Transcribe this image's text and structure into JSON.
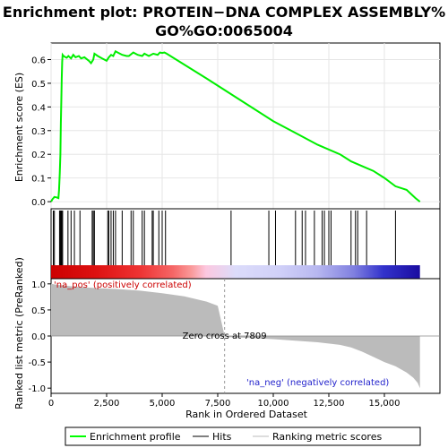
{
  "chart_data": {
    "type": "line",
    "title": "Enrichment plot: PROTEIN-DNA COMPLEX ASSEMBLY%GO%GO:0065004",
    "title_lines": [
      "Enrichment plot: PROTEIN−DNA COMPLEX ASSEMBLY%",
      "GO%GO:0065004"
    ],
    "xlabel": "Rank in Ordered Dataset",
    "xlim": [
      0,
      17500
    ],
    "xticks": [
      0,
      2500,
      5000,
      7500,
      10000,
      12500,
      15000
    ],
    "xtick_labels": [
      "0",
      "2,500",
      "5,000",
      "7,500",
      "10,000",
      "12,500",
      "15,000"
    ],
    "es_panel": {
      "ylabel": "Enrichment score (ES)",
      "ylim": [
        -0.03,
        0.67
      ],
      "yticks": [
        0.0,
        0.1,
        0.2,
        0.3,
        0.4,
        0.5,
        0.6
      ],
      "ytick_labels": [
        "0.0",
        "0.1",
        "0.2",
        "0.3",
        "0.4",
        "0.5",
        "0.6"
      ],
      "series_name": "Enrichment profile",
      "color": "#00ff00",
      "points": [
        [
          0,
          0
        ],
        [
          60,
          0.01
        ],
        [
          150,
          0.02
        ],
        [
          250,
          0.018
        ],
        [
          330,
          0.015
        ],
        [
          360,
          0.05
        ],
        [
          390,
          0.12
        ],
        [
          420,
          0.2
        ],
        [
          440,
          0.33
        ],
        [
          460,
          0.42
        ],
        [
          480,
          0.52
        ],
        [
          500,
          0.59
        ],
        [
          520,
          0.62
        ],
        [
          560,
          0.615
        ],
        [
          650,
          0.61
        ],
        [
          700,
          0.608
        ],
        [
          780,
          0.615
        ],
        [
          900,
          0.605
        ],
        [
          1000,
          0.62
        ],
        [
          1100,
          0.61
        ],
        [
          1250,
          0.615
        ],
        [
          1350,
          0.605
        ],
        [
          1500,
          0.61
        ],
        [
          1700,
          0.595
        ],
        [
          1800,
          0.585
        ],
        [
          1900,
          0.6
        ],
        [
          1950,
          0.625
        ],
        [
          2100,
          0.615
        ],
        [
          2300,
          0.605
        ],
        [
          2500,
          0.595
        ],
        [
          2600,
          0.61
        ],
        [
          2700,
          0.62
        ],
        [
          2800,
          0.615
        ],
        [
          2900,
          0.635
        ],
        [
          3000,
          0.63
        ],
        [
          3200,
          0.62
        ],
        [
          3400,
          0.615
        ],
        [
          3500,
          0.615
        ],
        [
          3700,
          0.63
        ],
        [
          3900,
          0.62
        ],
        [
          4100,
          0.615
        ],
        [
          4200,
          0.625
        ],
        [
          4400,
          0.615
        ],
        [
          4600,
          0.625
        ],
        [
          4800,
          0.62
        ],
        [
          4900,
          0.63
        ],
        [
          5000,
          0.628
        ],
        [
          5100,
          0.63
        ],
        [
          5200,
          0.625
        ],
        [
          7000,
          0.52
        ],
        [
          8000,
          0.46
        ],
        [
          9000,
          0.4
        ],
        [
          10000,
          0.34
        ],
        [
          11000,
          0.29
        ],
        [
          12000,
          0.24
        ],
        [
          13000,
          0.2
        ],
        [
          13500,
          0.17
        ],
        [
          14000,
          0.15
        ],
        [
          14500,
          0.13
        ],
        [
          15000,
          0.1
        ],
        [
          15500,
          0.065
        ],
        [
          16000,
          0.05
        ],
        [
          16400,
          0.015
        ],
        [
          16600,
          0.0
        ]
      ]
    },
    "hits_panel": {
      "series_name": "Hits",
      "hit_ranks": [
        100,
        150,
        380,
        420,
        450,
        480,
        520,
        760,
        900,
        1050,
        1300,
        1850,
        1900,
        1950,
        2550,
        2600,
        2700,
        2800,
        2900,
        3200,
        3600,
        3700,
        4100,
        4200,
        4550,
        4600,
        4850,
        5000,
        5150,
        8100,
        9800,
        10100,
        11000,
        11300,
        11450,
        11850,
        12200,
        12300,
        12500,
        12600,
        13500,
        13700,
        13800,
        14200,
        15500
      ],
      "gradient_colors": [
        "#cc0000",
        "#dd1111",
        "#ee3333",
        "#f56666",
        "#fa9999",
        "#fcc8e0",
        "#dcdcfa",
        "#d0d0f8",
        "#b8b8f0",
        "#8080e0",
        "#3333cc",
        "#1a0ca0"
      ],
      "gradient_stops": [
        0.0,
        0.12,
        0.24,
        0.33,
        0.38,
        0.42,
        0.5,
        0.62,
        0.72,
        0.82,
        0.9,
        1.0
      ]
    },
    "metric_panel": {
      "ylabel": "Ranked list metric (PreRanked)",
      "series_name": "Ranking metric scores",
      "ylim": [
        -1.1,
        1.1
      ],
      "yticks": [
        1.0,
        0.5,
        0.0,
        -0.5,
        -1.0
      ],
      "ytick_labels": [
        "1.0",
        "0.5",
        "0.0",
        "-0.5",
        "-1.0"
      ],
      "zero_cross_label": "Zero cross at 7809",
      "zero_cross": 7809,
      "pos_label": "'na_pos' (positively correlated)",
      "neg_label": "'na_neg' (negatively correlated)",
      "n_genes": 16600,
      "profile": [
        [
          0,
          1.0
        ],
        [
          300,
          0.98
        ],
        [
          1000,
          0.95
        ],
        [
          2000,
          0.92
        ],
        [
          3000,
          0.9
        ],
        [
          4000,
          0.87
        ],
        [
          5000,
          0.82
        ],
        [
          6000,
          0.76
        ],
        [
          7000,
          0.66
        ],
        [
          7500,
          0.58
        ],
        [
          7809,
          0.0
        ],
        [
          8000,
          -0.02
        ],
        [
          9000,
          -0.04
        ],
        [
          10000,
          -0.06
        ],
        [
          11000,
          -0.09
        ],
        [
          12000,
          -0.12
        ],
        [
          13000,
          -0.17
        ],
        [
          13500,
          -0.22
        ],
        [
          14000,
          -0.3
        ],
        [
          14500,
          -0.4
        ],
        [
          15000,
          -0.5
        ],
        [
          15500,
          -0.58
        ],
        [
          16000,
          -0.7
        ],
        [
          16300,
          -0.8
        ],
        [
          16500,
          -0.9
        ],
        [
          16600,
          -1.0
        ]
      ]
    },
    "legend": {
      "placement": "bottom",
      "entries": [
        {
          "label": "Enrichment profile",
          "color": "#00ff00"
        },
        {
          "label": "Hits",
          "color": "#000000"
        },
        {
          "label": "Ranking metric scores",
          "color": "#bbbbbb"
        }
      ]
    }
  }
}
